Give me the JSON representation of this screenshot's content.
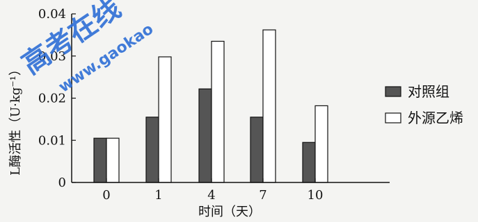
{
  "chart_data": {
    "type": "bar",
    "categories": [
      "0",
      "1",
      "4",
      "7",
      "10"
    ],
    "series": [
      {
        "name": "对照组",
        "values": [
          0.0105,
          0.0155,
          0.0222,
          0.0155,
          0.0095
        ],
        "color": "#555555"
      },
      {
        "name": "外源乙烯",
        "values": [
          0.0105,
          0.0298,
          0.0335,
          0.0362,
          0.0182
        ],
        "color": "#ffffff"
      }
    ],
    "yticks": [
      "0",
      "0.01",
      "0.02",
      "0.03",
      "0.04"
    ],
    "ylim": [
      0,
      0.04
    ],
    "xlabel": "时间（天）",
    "ylabel": "L酶活性（U·kg⁻¹）",
    "legend_position": "right",
    "grid": false
  },
  "watermark": {
    "main": "高考在线",
    "sub": "www.gaokao"
  }
}
